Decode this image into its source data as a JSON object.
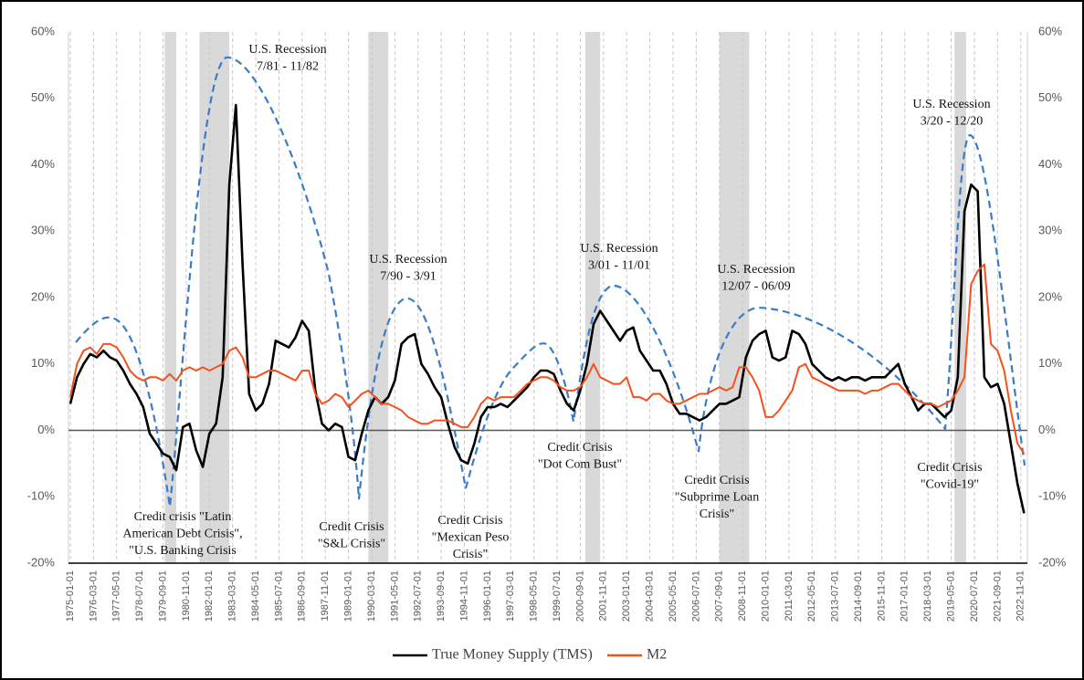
{
  "chart_data": {
    "type": "line",
    "xlim": [
      "1975-01-01",
      "2023-03-01"
    ],
    "xticks": [
      "1975-01-01",
      "1976-03-01",
      "1977-05-01",
      "1978-07-01",
      "1979-09-01",
      "1980-11-01",
      "1982-01-01",
      "1983-03-01",
      "1984-05-01",
      "1985-07-01",
      "1986-09-01",
      "1987-11-01",
      "1989-01-01",
      "1990-03-01",
      "1991-05-01",
      "1992-07-01",
      "1993-09-01",
      "1994-11-01",
      "1996-01-01",
      "1997-03-01",
      "1998-05-01",
      "1999-07-01",
      "2000-09-01",
      "2001-11-01",
      "2003-01-01",
      "2004-03-01",
      "2005-05-01",
      "2006-07-01",
      "2007-09-01",
      "2008-11-01",
      "2010-01-01",
      "2011-03-01",
      "2012-05-01",
      "2013-07-01",
      "2014-09-01",
      "2015-11-01",
      "2017-01-01",
      "2018-03-01",
      "2019-05-01",
      "2020-07-01",
      "2021-09-01",
      "2022-11-01"
    ],
    "ylim": [
      -20,
      60
    ],
    "yticks": [
      {
        "value": -20,
        "label": "-20%"
      },
      {
        "value": -10,
        "label": "-10%"
      },
      {
        "value": 0,
        "label": "0%"
      },
      {
        "value": 10,
        "label": "10%"
      },
      {
        "value": 20,
        "label": "20%"
      },
      {
        "value": 30,
        "label": "30%"
      },
      {
        "value": 40,
        "label": "40%"
      },
      {
        "value": 50,
        "label": "50%"
      },
      {
        "value": 60,
        "label": "60%"
      }
    ],
    "y2lim": [
      -20,
      60
    ],
    "y2ticks": [
      {
        "value": -20,
        "label": "-20%"
      },
      {
        "value": -10,
        "label": "-10%"
      },
      {
        "value": 0,
        "label": "0%"
      },
      {
        "value": 10,
        "label": "10%"
      },
      {
        "value": 20,
        "label": "20%"
      },
      {
        "value": 30,
        "label": "30%"
      },
      {
        "value": 40,
        "label": "40%"
      },
      {
        "value": 50,
        "label": "50%"
      },
      {
        "value": 60,
        "label": "60%"
      }
    ],
    "grid": true,
    "zero_line": true,
    "legend": "bottom",
    "shaded_color": "#d9d9d9",
    "shaded": [
      [
        "1979-10-01",
        "1980-05-01"
      ],
      [
        "1981-07-01",
        "1983-01-01"
      ],
      [
        "1990-01-01",
        "1991-01-01"
      ],
      [
        "2000-12-01",
        "2001-09-01"
      ],
      [
        "2007-09-01",
        "2009-03-01"
      ],
      [
        "2019-07-01",
        "2020-02-01"
      ]
    ],
    "x": [
      "1975-01-01",
      "1975-05-01",
      "1975-09-01",
      "1976-01-01",
      "1976-05-01",
      "1976-09-01",
      "1977-01-01",
      "1977-05-01",
      "1977-09-01",
      "1978-01-01",
      "1978-05-01",
      "1978-09-01",
      "1979-01-01",
      "1979-05-01",
      "1979-09-01",
      "1980-01-01",
      "1980-05-01",
      "1980-09-01",
      "1981-01-01",
      "1981-05-01",
      "1981-09-01",
      "1982-01-01",
      "1982-05-01",
      "1982-09-01",
      "1983-01-01",
      "1983-05-01",
      "1983-09-01",
      "1984-01-01",
      "1984-05-01",
      "1984-09-01",
      "1985-01-01",
      "1985-05-01",
      "1985-09-01",
      "1986-01-01",
      "1986-05-01",
      "1986-09-01",
      "1987-01-01",
      "1987-05-01",
      "1987-09-01",
      "1988-01-01",
      "1988-05-01",
      "1988-09-01",
      "1989-01-01",
      "1989-05-01",
      "1989-09-01",
      "1990-01-01",
      "1990-05-01",
      "1990-09-01",
      "1991-01-01",
      "1991-05-01",
      "1991-09-01",
      "1992-01-01",
      "1992-05-01",
      "1992-09-01",
      "1993-01-01",
      "1993-05-01",
      "1993-09-01",
      "1994-01-01",
      "1994-05-01",
      "1994-09-01",
      "1995-01-01",
      "1995-05-01",
      "1995-09-01",
      "1996-01-01",
      "1996-05-01",
      "1996-09-01",
      "1997-01-01",
      "1997-05-01",
      "1997-09-01",
      "1998-01-01",
      "1998-05-01",
      "1998-09-01",
      "1999-01-01",
      "1999-05-01",
      "1999-09-01",
      "2000-01-01",
      "2000-05-01",
      "2000-09-01",
      "2001-01-01",
      "2001-05-01",
      "2001-09-01",
      "2002-01-01",
      "2002-05-01",
      "2002-09-01",
      "2003-01-01",
      "2003-05-01",
      "2003-09-01",
      "2004-01-01",
      "2004-05-01",
      "2004-09-01",
      "2005-01-01",
      "2005-05-01",
      "2005-09-01",
      "2006-01-01",
      "2006-05-01",
      "2006-09-01",
      "2007-01-01",
      "2007-05-01",
      "2007-09-01",
      "2008-01-01",
      "2008-05-01",
      "2008-09-01",
      "2009-01-01",
      "2009-05-01",
      "2009-09-01",
      "2010-01-01",
      "2010-05-01",
      "2010-09-01",
      "2011-01-01",
      "2011-05-01",
      "2011-09-01",
      "2012-01-01",
      "2012-05-01",
      "2012-09-01",
      "2013-01-01",
      "2013-05-01",
      "2013-09-01",
      "2014-01-01",
      "2014-05-01",
      "2014-09-01",
      "2015-01-01",
      "2015-05-01",
      "2015-09-01",
      "2016-01-01",
      "2016-05-01",
      "2016-09-01",
      "2017-01-01",
      "2017-05-01",
      "2017-09-01",
      "2018-01-01",
      "2018-05-01",
      "2018-09-01",
      "2019-01-01",
      "2019-05-01",
      "2019-09-01",
      "2020-01-01",
      "2020-05-01",
      "2020-09-01",
      "2021-01-01",
      "2021-05-01",
      "2021-09-01",
      "2022-01-01",
      "2022-05-01",
      "2022-09-01",
      "2023-01-01"
    ],
    "series": [
      {
        "name": "True Money Supply (TMS)",
        "color": "#000000",
        "values": [
          4,
          8,
          10,
          11.5,
          11,
          12,
          11,
          10.5,
          9,
          7,
          5.5,
          3.5,
          -0.5,
          -2,
          -3.5,
          -4,
          -6,
          0.5,
          1,
          -3,
          -5.5,
          -0.5,
          1,
          8,
          37,
          49,
          25,
          5.5,
          3,
          4,
          7,
          13.5,
          13,
          12.5,
          14,
          16.5,
          15,
          6,
          1,
          0,
          1,
          0.5,
          -4,
          -4.5,
          -0.5,
          3,
          5,
          4,
          5,
          7.5,
          13,
          14,
          14.5,
          10,
          8.5,
          6.5,
          5,
          1,
          -2.5,
          -4.5,
          -5,
          -2,
          2,
          3.5,
          3.5,
          4,
          3.5,
          4.5,
          5.5,
          6.5,
          8,
          9,
          9,
          8.5,
          6,
          4,
          3,
          6,
          10,
          16,
          18,
          16.5,
          15,
          13.5,
          15,
          15.5,
          12,
          10.5,
          9,
          9,
          7,
          4,
          2.5,
          2.5,
          2,
          1.5,
          2,
          3,
          4,
          4,
          4.5,
          5,
          11,
          13.5,
          14.5,
          15,
          11,
          10.5,
          11,
          15,
          14.5,
          13,
          10,
          9,
          8,
          7.5,
          8,
          7.5,
          8,
          8,
          7.5,
          8,
          8,
          8,
          9,
          10,
          7,
          5,
          3,
          4,
          4,
          3,
          2,
          3,
          8,
          33,
          37,
          36,
          8,
          6.5,
          7,
          4,
          -2,
          -8,
          -12.5
        ]
      },
      {
        "name": "M2",
        "color": "#f4511e",
        "values": [
          5,
          10,
          12,
          12.5,
          11.5,
          13,
          13,
          12.5,
          11,
          9,
          8,
          7.5,
          8,
          8,
          7.5,
          8.5,
          7.5,
          9,
          9.5,
          9,
          9.5,
          9,
          9.5,
          10,
          12,
          12.5,
          11,
          8,
          8,
          8.5,
          9,
          9,
          8.5,
          8,
          7.5,
          9,
          9,
          5.5,
          4,
          4.5,
          5.5,
          5,
          3.5,
          4.5,
          5.5,
          6,
          5,
          4,
          4,
          3.5,
          3,
          2,
          1.5,
          1,
          1,
          1.5,
          1.5,
          1.5,
          1,
          0.5,
          0.5,
          2,
          4,
          5,
          4.5,
          5,
          5,
          5,
          6,
          7,
          7.5,
          8,
          8,
          7.5,
          6.5,
          6,
          6,
          6.5,
          8,
          10,
          8,
          7.5,
          7,
          7,
          8,
          5,
          5,
          4.5,
          5.5,
          5.5,
          4.5,
          4,
          4,
          4.5,
          5,
          5.5,
          5.5,
          6,
          6.5,
          6,
          6.5,
          9.5,
          9.5,
          8,
          6,
          2,
          2,
          3,
          4.5,
          6,
          9.5,
          10,
          8,
          7.5,
          7,
          6.5,
          6,
          6,
          6,
          6,
          5.5,
          6,
          6,
          6.5,
          7,
          7,
          6,
          5,
          4.5,
          4,
          4,
          3.5,
          4,
          4.5,
          6,
          8,
          22,
          24,
          25,
          13,
          12,
          9,
          3,
          -2,
          -3.5
        ]
      }
    ],
    "annotations": [
      [
        "U.S. Recession",
        "7/81 - 11/82"
      ],
      [
        "U.S. Recession",
        "7/90 - 3/91"
      ],
      [
        "U.S. Recession",
        "3/01 - 11/01"
      ],
      [
        "U.S. Recession",
        "12/07 - 06/09"
      ],
      [
        "U.S. Recession",
        "3/20 - 12/20"
      ],
      [
        "Credit crisis \"Latin",
        "American Debt Crisis\",",
        "\"U.S. Banking Crisis"
      ],
      [
        "Credit Crisis",
        "\"S&L Crisis\""
      ],
      [
        "Credit Crisis",
        "\"Mexican Peso",
        "Crisis\""
      ],
      [
        "Credit Crisis",
        "\"Dot Com Bust\""
      ],
      [
        "Credit Crisis",
        "\"Subprime Loan",
        "Crisis\""
      ],
      [
        "Credit Crisis",
        "\"Covid-19\""
      ]
    ]
  }
}
